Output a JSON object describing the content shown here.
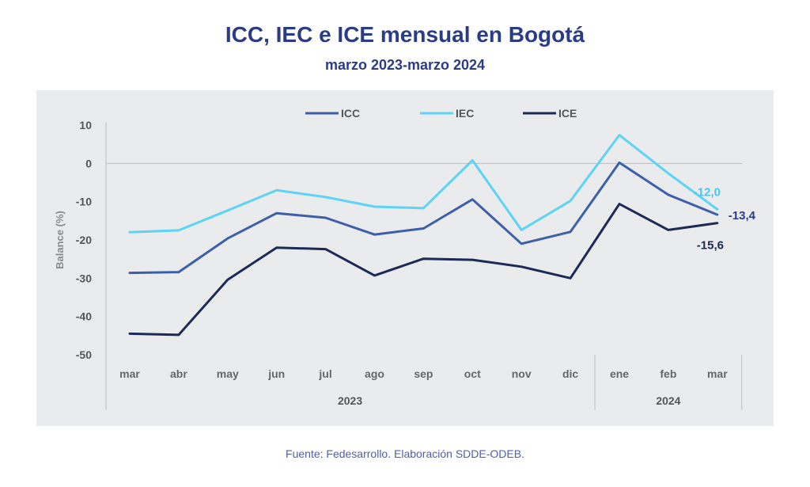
{
  "title": "ICC, IEC e ICE mensual en Bogotá",
  "subtitle": "marzo 2023-marzo 2024",
  "footer": "Fuente: Fedesarrollo. Elaboración SDDE-ODEB.",
  "chart_data": {
    "type": "line",
    "ylabel": "Balance (%)",
    "ylim": [
      -50,
      10
    ],
    "yticks": [
      10,
      0,
      -10,
      -20,
      -30,
      -40,
      -50
    ],
    "categories": [
      "mar",
      "abr",
      "may",
      "jun",
      "jul",
      "ago",
      "sep",
      "oct",
      "nov",
      "dic",
      "ene",
      "feb",
      "mar"
    ],
    "groups": [
      {
        "label": "2023",
        "from": 0,
        "to": 9
      },
      {
        "label": "2024",
        "from": 10,
        "to": 12
      }
    ],
    "grid": "zero line only",
    "legend": "top-center",
    "series": [
      {
        "name": "ICC",
        "color": "#3d5fa8",
        "values": [
          -28.6,
          -28.4,
          -19.6,
          -13.0,
          -14.2,
          -18.6,
          -17.0,
          -9.4,
          -21.0,
          -17.9,
          0.2,
          -8.2,
          -13.4
        ],
        "end_label": "-13,4",
        "end_label_color": "#2a3c84"
      },
      {
        "name": "IEC",
        "color": "#5dd3f5",
        "values": [
          -18.0,
          -17.5,
          -12.3,
          -7.0,
          -8.8,
          -11.3,
          -11.7,
          0.8,
          -17.4,
          -9.8,
          7.4,
          -2.6,
          -12.0
        ],
        "end_label": "-12,0",
        "end_label_color": "#4fc4ea"
      },
      {
        "name": "ICE",
        "color": "#1d2a56",
        "values": [
          -44.5,
          -44.8,
          -30.4,
          -22.0,
          -22.4,
          -29.3,
          -24.9,
          -25.2,
          -27.0,
          -30.0,
          -10.6,
          -17.4,
          -15.6
        ],
        "end_label": "-15,6",
        "end_label_color": "#1d2a56"
      }
    ]
  }
}
